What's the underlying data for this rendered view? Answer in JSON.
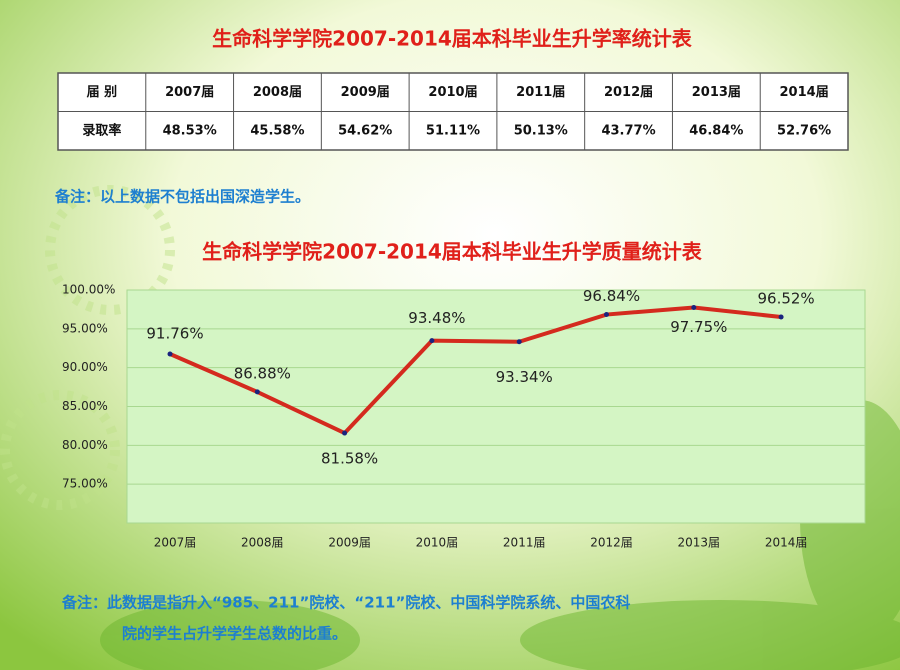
{
  "title": "生命科学学院2007-2014届本科毕业生升学率统计表",
  "table": {
    "rows": [
      [
        "届  别",
        "2007届",
        "2008届",
        "2009届",
        "2010届",
        "2011届",
        "2012届",
        "2013届",
        "2014届"
      ],
      [
        "录取率",
        "48.53%",
        "45.58%",
        "54.62%",
        "51.11%",
        "50.13%",
        "43.77%",
        "46.84%",
        "52.76%"
      ]
    ]
  },
  "note1": "备注：以上数据不包括出国深造学生。",
  "chart_data": {
    "type": "line",
    "title": "生命科学学院2007-2014届本科毕业生升学质量统计表",
    "categories": [
      "2007届",
      "2008届",
      "2009届",
      "2010届",
      "2011届",
      "2012届",
      "2013届",
      "2014届"
    ],
    "series": [
      {
        "name": "升学质量",
        "color": "#d42a1e",
        "values": [
          91.76,
          86.88,
          81.58,
          93.48,
          93.34,
          96.84,
          97.75,
          96.52
        ],
        "value_labels": [
          "91.76%",
          "86.88%",
          "81.58%",
          "93.48%",
          "93.34%",
          "96.84%",
          "97.75%",
          "96.52%"
        ]
      }
    ],
    "ylim": [
      70,
      100
    ],
    "yticks": [
      {
        "value": 75,
        "label": "75.00%"
      },
      {
        "value": 80,
        "label": "80.00%"
      },
      {
        "value": 85,
        "label": "85.00%"
      },
      {
        "value": 90,
        "label": "90.00%"
      },
      {
        "value": 95,
        "label": "95.00%"
      },
      {
        "value": 100,
        "label": "100.00%"
      }
    ],
    "grid": true,
    "plot_color": "#d4f5c4"
  },
  "note2": [
    "备注：此数据是指升入“985、211”院校、“211”院校、中国科学院系统、中国农科",
    "院的学生占升学学生总数的比重。"
  ]
}
